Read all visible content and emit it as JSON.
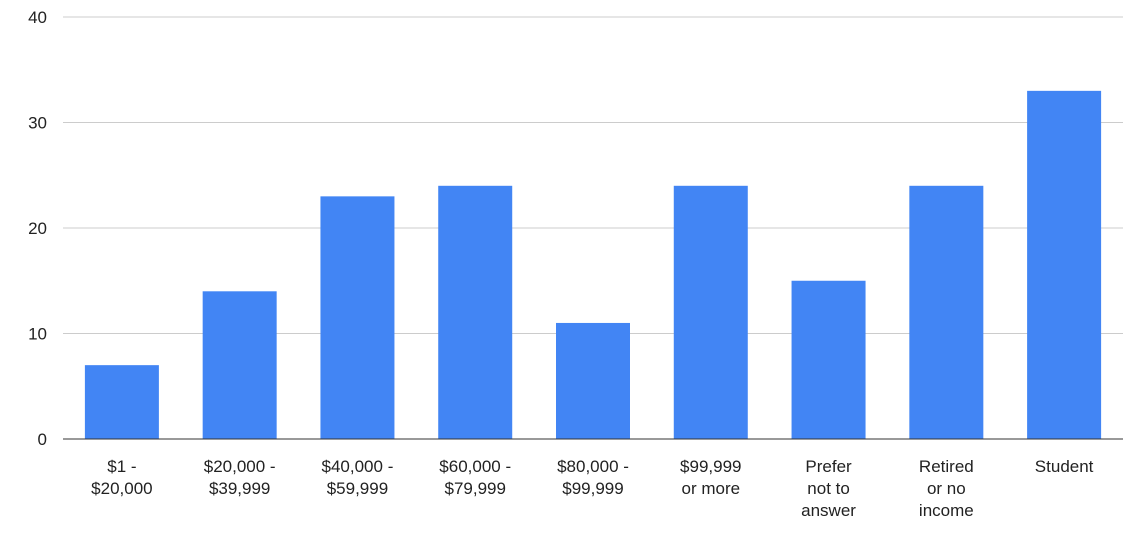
{
  "chart_data": {
    "type": "bar",
    "categories": [
      [
        "$1 -",
        "$20,000"
      ],
      [
        "$20,000 -",
        "$39,999"
      ],
      [
        "$40,000 -",
        "$59,999"
      ],
      [
        "$60,000 -",
        "$79,999"
      ],
      [
        "$80,000 -",
        "$99,999"
      ],
      [
        "$99,999",
        "or more"
      ],
      [
        "Prefer",
        "not to",
        "answer"
      ],
      [
        "Retired",
        "or no",
        "income"
      ],
      [
        "Student"
      ]
    ],
    "values": [
      7,
      14,
      23,
      24,
      11,
      24,
      15,
      24,
      33
    ],
    "title": "",
    "xlabel": "",
    "ylabel": "",
    "ylim": [
      0,
      40
    ],
    "yticks": [
      0,
      10,
      20,
      30,
      40
    ],
    "grid": true,
    "legend": "none",
    "bar_color": "#4285f4"
  }
}
